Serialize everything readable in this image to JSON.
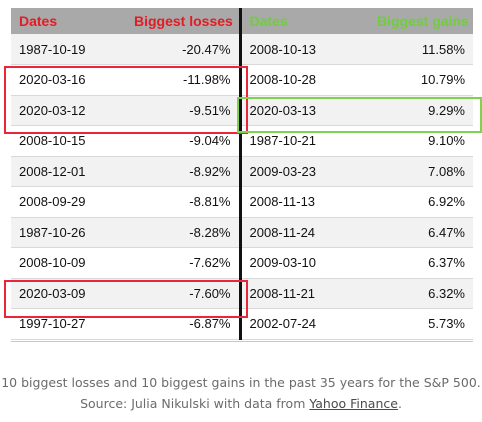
{
  "table": {
    "headers": [
      "Dates",
      "Biggest losses",
      "Dates",
      "Biggest gains"
    ],
    "rows": [
      {
        "loss_date": "1987-10-19",
        "loss": "-20.47%",
        "gain_date": "2008-10-13",
        "gain": "11.58%"
      },
      {
        "loss_date": "2020-03-16",
        "loss": "-11.98%",
        "gain_date": "2008-10-28",
        "gain": "10.79%"
      },
      {
        "loss_date": "2020-03-12",
        "loss": "-9.51%",
        "gain_date": "2020-03-13",
        "gain": "9.29%"
      },
      {
        "loss_date": "2008-10-15",
        "loss": "-9.04%",
        "gain_date": "1987-10-21",
        "gain": "9.10%"
      },
      {
        "loss_date": "2008-12-01",
        "loss": "-8.92%",
        "gain_date": "2009-03-23",
        "gain": "7.08%"
      },
      {
        "loss_date": "2008-09-29",
        "loss": "-8.81%",
        "gain_date": "2008-11-13",
        "gain": "6.92%"
      },
      {
        "loss_date": "1987-10-26",
        "loss": "-8.28%",
        "gain_date": "2008-11-24",
        "gain": "6.47%"
      },
      {
        "loss_date": "2008-10-09",
        "loss": "-7.62%",
        "gain_date": "2009-03-10",
        "gain": "6.37%"
      },
      {
        "loss_date": "2020-03-09",
        "loss": "-7.60%",
        "gain_date": "2008-11-21",
        "gain": "6.32%"
      },
      {
        "loss_date": "1997-10-27",
        "loss": "-6.87%",
        "gain_date": "2002-07-24",
        "gain": "5.73%"
      }
    ]
  },
  "colors": {
    "loss_accent": "#e41b23",
    "gain_accent": "#6fcf3a",
    "header_bg": "#a9a9a9"
  },
  "caption": {
    "line1": "10 biggest losses and 10 biggest gains in the past 35 years for the S&P 500.",
    "line2_prefix": "Source: Julia Nikulski with data from ",
    "link_text": "Yahoo Finance",
    "line2_suffix": "."
  }
}
